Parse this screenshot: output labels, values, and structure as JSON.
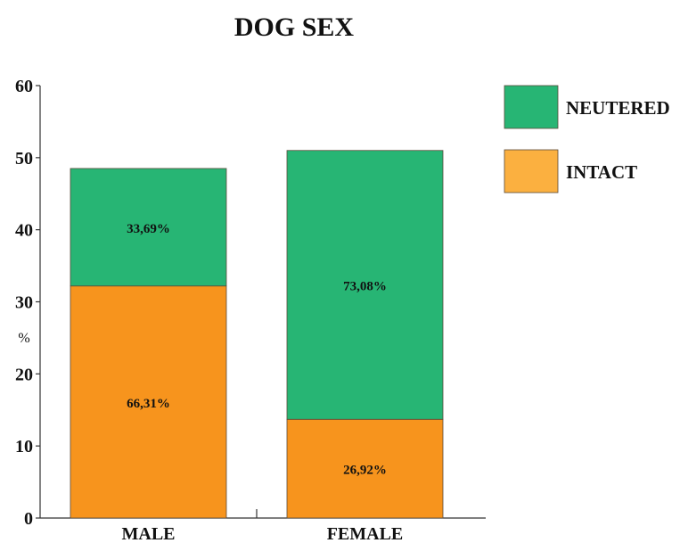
{
  "chart_data": {
    "type": "bar",
    "stacked": true,
    "title": "DOG SEX",
    "xlabel": "",
    "ylabel": "%",
    "ylim": [
      0,
      60
    ],
    "yticks": [
      0,
      10,
      20,
      30,
      40,
      50,
      60
    ],
    "grid": false,
    "legend_position": "top-right",
    "categories": [
      "MALE",
      "FEMALE"
    ],
    "series": [
      {
        "name": "INTACT",
        "color": "#f7941d",
        "legend_color": "#fbb040",
        "values": [
          32.2,
          13.7
        ],
        "labels": [
          "66,31%",
          "26,92%"
        ]
      },
      {
        "name": "NEUTERED",
        "color": "#27b574",
        "legend_color": "#27b574",
        "values": [
          16.3,
          37.3
        ],
        "labels": [
          "33,69%",
          "73,08%"
        ]
      }
    ],
    "legend_order": [
      "NEUTERED",
      "INTACT"
    ]
  }
}
